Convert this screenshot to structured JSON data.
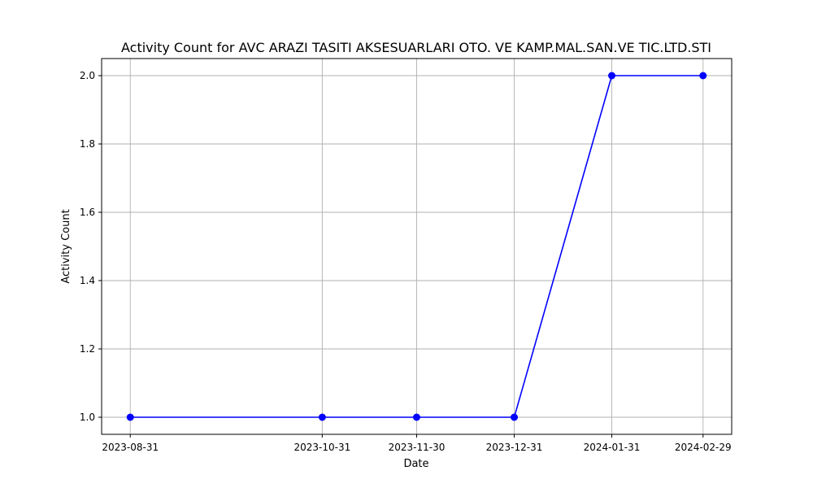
{
  "chart_data": {
    "type": "line",
    "title": "Activity Count for AVC ARAZI TASITI AKSESUARLARI OTO. VE KAMP.MAL.SAN.VE TIC.LTD.STI",
    "xlabel": "Date",
    "ylabel": "Activity Count",
    "x": [
      "2023-08-31",
      "2023-10-31",
      "2023-11-30",
      "2023-12-31",
      "2024-01-31",
      "2024-02-29"
    ],
    "series": [
      {
        "values": [
          1,
          1,
          1,
          1,
          2,
          2
        ],
        "color": "#0000ff",
        "marker": "circle"
      }
    ],
    "ylim": [
      0.95,
      2.05
    ],
    "yticks": [
      "1.0",
      "1.2",
      "1.4",
      "1.6",
      "1.8",
      "2.0"
    ],
    "grid": true
  }
}
